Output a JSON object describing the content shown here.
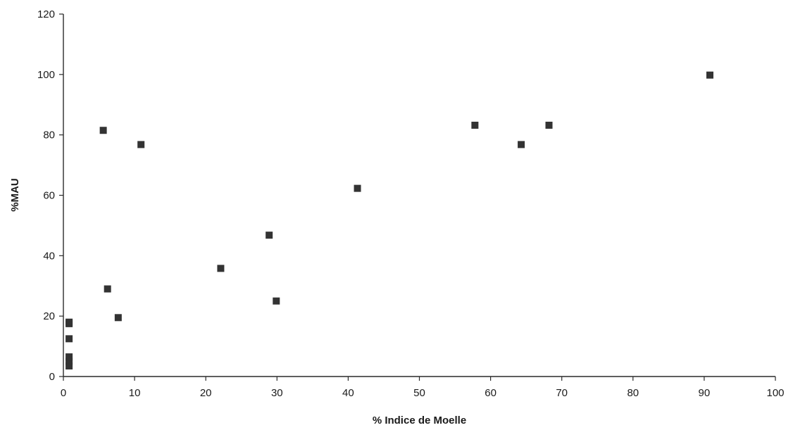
{
  "chart_data": {
    "type": "scatter",
    "title": "",
    "xlabel": "% Indice de Moelle",
    "ylabel": "%MAU",
    "xlim": [
      0,
      100
    ],
    "ylim": [
      0,
      120
    ],
    "xticks": [
      0,
      10,
      20,
      30,
      40,
      50,
      60,
      70,
      80,
      90,
      100
    ],
    "yticks": [
      0,
      20,
      40,
      60,
      80,
      100,
      120
    ],
    "grid": false,
    "legend": "none",
    "marker": "square",
    "marker_color": "#333333",
    "series": [
      {
        "points": [
          {
            "x": 0.8,
            "y": 3.5
          },
          {
            "x": 0.8,
            "y": 5.0
          },
          {
            "x": 0.8,
            "y": 6.5
          },
          {
            "x": 0.8,
            "y": 12.5
          },
          {
            "x": 0.8,
            "y": 17.5
          },
          {
            "x": 0.8,
            "y": 18.0
          },
          {
            "x": 5.6,
            "y": 81.5
          },
          {
            "x": 6.2,
            "y": 29.0
          },
          {
            "x": 7.7,
            "y": 19.5
          },
          {
            "x": 10.9,
            "y": 76.8
          },
          {
            "x": 22.1,
            "y": 35.8
          },
          {
            "x": 28.9,
            "y": 46.8
          },
          {
            "x": 29.9,
            "y": 25.0
          },
          {
            "x": 41.3,
            "y": 62.3
          },
          {
            "x": 57.8,
            "y": 83.2
          },
          {
            "x": 64.3,
            "y": 76.8
          },
          {
            "x": 68.2,
            "y": 83.2
          },
          {
            "x": 90.8,
            "y": 99.8
          }
        ]
      }
    ]
  }
}
